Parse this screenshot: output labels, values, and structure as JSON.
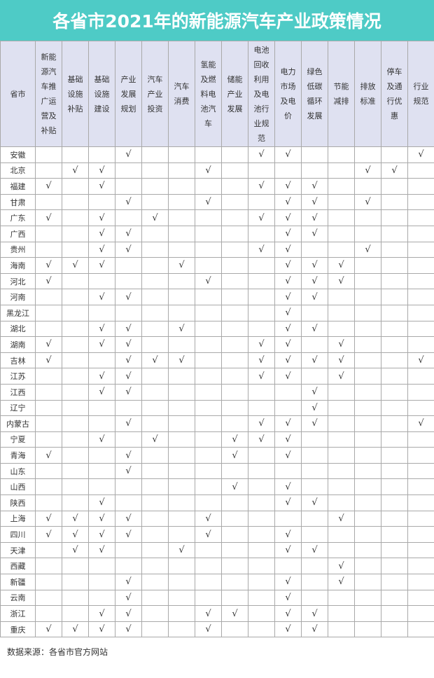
{
  "title": "各省市2021年的新能源汽车产业政策情况",
  "check_mark": "√",
  "columns": [
    "省市",
    "新能源汽车推广运营及补贴",
    "基础设施补贴",
    "基础设施建设",
    "产业发展规划",
    "汽车产业投资",
    "汽车消费",
    "氢能及燃料电池汽车",
    "储能产业发展",
    "电池回收利用及电池行业规范",
    "电力市场及电价",
    "绿色低碳循环发展",
    "节能减排",
    "排放标准",
    "停车及通行优惠",
    "行业规范"
  ],
  "rows": [
    {
      "province": "安徽",
      "checks": [
        0,
        0,
        0,
        1,
        0,
        0,
        0,
        0,
        1,
        1,
        0,
        0,
        0,
        0,
        1
      ]
    },
    {
      "province": "北京",
      "checks": [
        0,
        1,
        1,
        0,
        0,
        0,
        1,
        0,
        0,
        0,
        0,
        0,
        1,
        1,
        0
      ]
    },
    {
      "province": "福建",
      "checks": [
        1,
        0,
        1,
        0,
        0,
        0,
        0,
        0,
        1,
        1,
        1,
        0,
        0,
        0,
        0
      ]
    },
    {
      "province": "甘肃",
      "checks": [
        0,
        0,
        0,
        1,
        0,
        0,
        1,
        0,
        0,
        1,
        1,
        0,
        1,
        0,
        0
      ]
    },
    {
      "province": "广东",
      "checks": [
        1,
        0,
        1,
        0,
        1,
        0,
        0,
        0,
        1,
        1,
        1,
        0,
        0,
        0,
        0
      ]
    },
    {
      "province": "广西",
      "checks": [
        0,
        0,
        1,
        1,
        0,
        0,
        0,
        0,
        0,
        1,
        1,
        0,
        0,
        0,
        0
      ]
    },
    {
      "province": "贵州",
      "checks": [
        0,
        0,
        1,
        1,
        0,
        0,
        0,
        0,
        1,
        1,
        0,
        0,
        1,
        0,
        0
      ]
    },
    {
      "province": "海南",
      "checks": [
        1,
        1,
        1,
        0,
        0,
        1,
        0,
        0,
        0,
        1,
        1,
        1,
        0,
        0,
        0
      ]
    },
    {
      "province": "河北",
      "checks": [
        1,
        0,
        0,
        0,
        0,
        0,
        1,
        0,
        0,
        1,
        1,
        1,
        0,
        0,
        0
      ]
    },
    {
      "province": "河南",
      "checks": [
        0,
        0,
        1,
        1,
        0,
        0,
        0,
        0,
        0,
        1,
        1,
        0,
        0,
        0,
        0
      ]
    },
    {
      "province": "黑龙江",
      "checks": [
        0,
        0,
        0,
        0,
        0,
        0,
        0,
        0,
        0,
        1,
        0,
        0,
        0,
        0,
        0
      ]
    },
    {
      "province": "湖北",
      "checks": [
        0,
        0,
        1,
        1,
        0,
        1,
        0,
        0,
        0,
        1,
        1,
        0,
        0,
        0,
        0
      ]
    },
    {
      "province": "湖南",
      "checks": [
        1,
        0,
        1,
        1,
        0,
        0,
        0,
        0,
        1,
        1,
        0,
        1,
        0,
        0,
        0
      ]
    },
    {
      "province": "吉林",
      "checks": [
        1,
        0,
        0,
        1,
        1,
        1,
        0,
        0,
        1,
        1,
        1,
        1,
        0,
        0,
        1
      ]
    },
    {
      "province": "江苏",
      "checks": [
        0,
        0,
        1,
        1,
        0,
        0,
        0,
        0,
        1,
        1,
        0,
        1,
        0,
        0,
        0
      ]
    },
    {
      "province": "江西",
      "checks": [
        0,
        0,
        1,
        1,
        0,
        0,
        0,
        0,
        0,
        0,
        1,
        0,
        0,
        0,
        0
      ]
    },
    {
      "province": "辽宁",
      "checks": [
        0,
        0,
        0,
        0,
        0,
        0,
        0,
        0,
        0,
        0,
        1,
        0,
        0,
        0,
        0
      ]
    },
    {
      "province": "内蒙古",
      "checks": [
        0,
        0,
        0,
        1,
        0,
        0,
        0,
        0,
        1,
        1,
        1,
        0,
        0,
        0,
        1
      ]
    },
    {
      "province": "宁夏",
      "checks": [
        0,
        0,
        1,
        0,
        1,
        0,
        0,
        1,
        1,
        1,
        0,
        0,
        0,
        0,
        0
      ]
    },
    {
      "province": "青海",
      "checks": [
        1,
        0,
        0,
        1,
        0,
        0,
        0,
        1,
        0,
        1,
        0,
        0,
        0,
        0,
        0
      ]
    },
    {
      "province": "山东",
      "checks": [
        0,
        0,
        0,
        1,
        0,
        0,
        0,
        0,
        0,
        0,
        0,
        0,
        0,
        0,
        0
      ]
    },
    {
      "province": "山西",
      "checks": [
        0,
        0,
        0,
        0,
        0,
        0,
        0,
        1,
        0,
        1,
        0,
        0,
        0,
        0,
        0
      ]
    },
    {
      "province": "陕西",
      "checks": [
        0,
        0,
        1,
        0,
        0,
        0,
        0,
        0,
        0,
        1,
        1,
        0,
        0,
        0,
        0
      ]
    },
    {
      "province": "上海",
      "checks": [
        1,
        1,
        1,
        1,
        0,
        0,
        1,
        0,
        0,
        0,
        0,
        1,
        0,
        0,
        0
      ]
    },
    {
      "province": "四川",
      "checks": [
        1,
        1,
        1,
        1,
        0,
        0,
        1,
        0,
        0,
        1,
        0,
        0,
        0,
        0,
        0
      ]
    },
    {
      "province": "天津",
      "checks": [
        0,
        1,
        1,
        0,
        0,
        1,
        0,
        0,
        0,
        1,
        1,
        0,
        0,
        0,
        0
      ]
    },
    {
      "province": "西藏",
      "checks": [
        0,
        0,
        0,
        0,
        0,
        0,
        0,
        0,
        0,
        0,
        0,
        1,
        0,
        0,
        0
      ]
    },
    {
      "province": "新疆",
      "checks": [
        0,
        0,
        0,
        1,
        0,
        0,
        0,
        0,
        0,
        1,
        0,
        1,
        0,
        0,
        0
      ]
    },
    {
      "province": "云南",
      "checks": [
        0,
        0,
        0,
        1,
        0,
        0,
        0,
        0,
        0,
        1,
        0,
        0,
        0,
        0,
        0
      ]
    },
    {
      "province": "浙江",
      "checks": [
        0,
        0,
        1,
        1,
        0,
        0,
        1,
        1,
        0,
        1,
        1,
        0,
        0,
        0,
        0
      ]
    },
    {
      "province": "重庆",
      "checks": [
        1,
        1,
        1,
        1,
        0,
        0,
        1,
        0,
        0,
        1,
        1,
        0,
        0,
        0,
        0
      ]
    }
  ],
  "footer": "数据来源：各省市官方网站",
  "colors": {
    "title_bg": "#4ecbc6",
    "header_bg": "#dfe1f1",
    "grid": "#a9a9a9"
  }
}
